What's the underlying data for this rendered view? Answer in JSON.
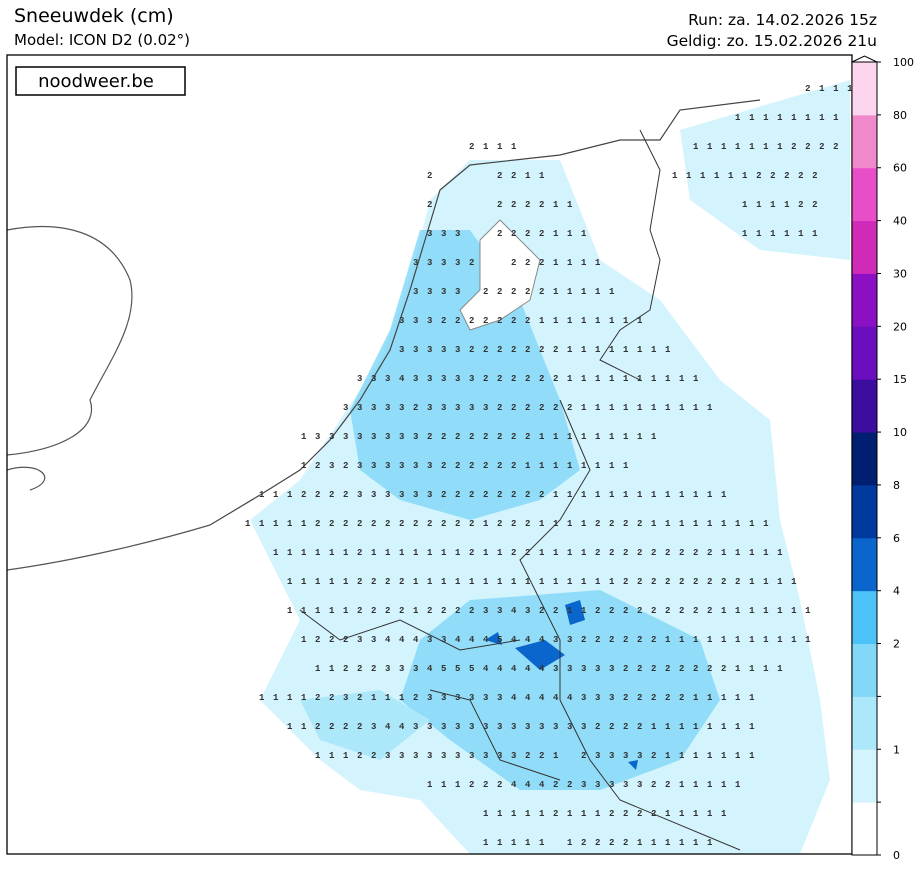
{
  "header": {
    "title": "Sneeuwdek (cm)",
    "model": "Model: ICON D2 (0.02°)",
    "run": "Run: za. 14.02.2026 15z",
    "valid": "Geldig: zo. 15.02.2026 21u"
  },
  "watermark": "noodweer.be",
  "colorbar": {
    "ticks": [
      0,
      null,
      1,
      null,
      2,
      4,
      6,
      8,
      10,
      15,
      20,
      30,
      40,
      60,
      80,
      100
    ],
    "colors": [
      "#ffffff",
      "#d4f4fd",
      "#ade8fa",
      "#82d8f7",
      "#4cc3f7",
      "#0a66cc",
      "#003a9e",
      "#001f70",
      "#3c0d9e",
      "#6a0ec0",
      "#8b10c4",
      "#cf2ab8",
      "#e84ec8",
      "#f088cc",
      "#fcd6ef"
    ]
  },
  "map_values": [
    "                                                                                2 1 1 1",
    "                                                                      1 1 1 1 1 1 1 1",
    "                                2 1 1 1                         1 1 1 1 1 1 1 2 2 2 2",
    "                          2         2 2 1 1                  1 1 1 1 1 1 2 2 2 2 2",
    "                          2         2 2 2 2 1 1                        1 1 1 1 2 2",
    "                          3 3 3     2 2 2 2 1 1 1                      1 1 1 1 1 1",
    "                        3 3 3 3 2     2 2 2 1 1 1 1",
    "                        3 3 3 3   2 2 2 2 2 1 1 1 1 1",
    "                      3 3 3 2 2 2 2 2 2 2 1 1 1 1 1 1 1 1",
    "                      3 3 3 3 3 2 2 2 2 2 2 2 1 1 1 1 1 1 1 1",
    "                3 3 3 4 3 3 3 3 3 2 2 2 2 2 2 1 1 1 1 1 1 1 1 1 1",
    "              3 3 3 3 3 2 3 3 3 3 3 2 2 2 2 2 2 1 1 1 1 1 1 1 1 1 1",
    "        1 3 3 3 3 3 3 3 3 2 2 2 2 2 2 2 2 1 1 1 1 1 1 1 1 1",
    "        1 2 3 2 3 3 3 3 3 3 2 2 2 2 2 2 1 1 1 1 1 1 1 1",
    "  1 1 1 2 2 2 2 3 3 3 3 3 3 2 2 2 2 2 2 2 2 1 1 1 1 1 1 1 1 1 1 1 1 1",
    "1 1 1 1 1 2 2 2 2 2 2 2 2 2 2 2 2 1 2 2 2 1 1 1 1 2 2 2 2 1 1 1 1 1 1 1 1 1",
    "    1 1 1 1 1 1 2 1 1 1 1 1 1 1 2 1 1 2 2 1 1 1 1 2 2 2 2 2 2 2 2 2 1 1 1 1 1",
    "      1 1 1 1 1 2 2 2 2 1 1 1 1 1 1 1 1 1 1 1 1 1 1 1 2 2 2 2 2 2 2 2 2 1 1 1 1",
    "      1 1 1 1 1 2 2 2 2 1 2 2 2 2 3 3 4 3 2 2 1 1 2 2 2 2 2 2 2 2 2 1 1 1 1 1 1 1",
    "        1 2 2 2 3 3 4 4 4 3 3 4 4 4 5 4 4 4 3 3 2 2 2 2 2 2 1 1 1 1 1 1 1 1 1 1 1",
    "          1 1 2 2 2 3 3 3 4 5 5 5 4 4 4 4 4 3 3 3 3 3 2 2 2 2 2 2 2 2 1 1 1 1",
    "  1 1 1 1 2 2 3 2 1 1 1 2 3 3 3 3 3 3 4 4 4 4 4 3 3 3 2 2 2 2 2 1 1 1 1 1",
    "      1 1 2 2 2 2 3 4 4 3 3 3 3 3 3 3 3 3 3 3 3 3 2 2 2 2 1 1 1 1 1 1 1 1",
    "          1 1 1 2 2 3 3 3 3 3 3 3 3 3 3 2 2 1   2 3 3 3 3 2 1 1 1 1 1 1 1",
    "                          1 1 1 2 2 2 4 4 4 2 2 3 3 3 3 3 2 2 1 1 1 1 1",
    "                                  1 1 1 1 1 2 1 1 1 2 2 2 2 1 1 1 1 1",
    "                                  1 1 1 1 1   1 2 2 2 2 1 1 1 1 1 1"
  ]
}
